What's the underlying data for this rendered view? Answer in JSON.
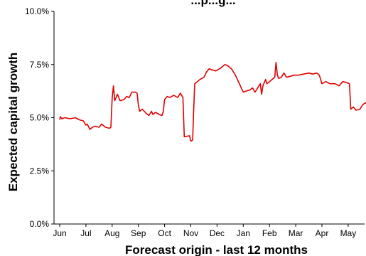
{
  "chart_data": {
    "type": "line",
    "title": "...p...g...",
    "xlabel": "Forecast origin - last 12 months",
    "ylabel": "Expected capital growth",
    "ylim": [
      0,
      10
    ],
    "y_ticks": [
      "0.0%",
      "2.5%",
      "5.0%",
      "7.5%",
      "10.0%"
    ],
    "x_ticks": [
      "Jun",
      "Jul",
      "Aug",
      "Sep",
      "Oct",
      "Nov",
      "Dec",
      "Jan",
      "Feb",
      "Mar",
      "Apr",
      "May"
    ],
    "x_range": [
      0,
      11.75
    ],
    "grid": false,
    "legend": "none",
    "series": [
      {
        "color": "#e00000",
        "points": [
          [
            0.0,
            4.9
          ],
          [
            0.03,
            5.05
          ],
          [
            0.08,
            4.95
          ],
          [
            0.2,
            5.0
          ],
          [
            0.4,
            4.95
          ],
          [
            0.6,
            5.0
          ],
          [
            0.75,
            4.9
          ],
          [
            0.9,
            4.85
          ],
          [
            1.0,
            4.65
          ],
          [
            1.05,
            4.7
          ],
          [
            1.15,
            4.45
          ],
          [
            1.25,
            4.55
          ],
          [
            1.35,
            4.6
          ],
          [
            1.5,
            4.55
          ],
          [
            1.6,
            4.7
          ],
          [
            1.75,
            4.55
          ],
          [
            1.9,
            4.5
          ],
          [
            1.95,
            4.55
          ],
          [
            2.0,
            5.9
          ],
          [
            2.05,
            6.5
          ],
          [
            2.1,
            5.8
          ],
          [
            2.2,
            6.1
          ],
          [
            2.3,
            5.8
          ],
          [
            2.45,
            5.85
          ],
          [
            2.55,
            6.0
          ],
          [
            2.65,
            5.95
          ],
          [
            2.75,
            6.2
          ],
          [
            2.9,
            6.2
          ],
          [
            2.95,
            6.15
          ],
          [
            3.0,
            5.6
          ],
          [
            3.05,
            5.3
          ],
          [
            3.15,
            5.4
          ],
          [
            3.3,
            5.2
          ],
          [
            3.4,
            5.1
          ],
          [
            3.5,
            5.3
          ],
          [
            3.55,
            5.15
          ],
          [
            3.65,
            5.25
          ],
          [
            3.8,
            5.15
          ],
          [
            3.9,
            5.1
          ],
          [
            3.95,
            5.3
          ],
          [
            4.0,
            5.85
          ],
          [
            4.1,
            6.0
          ],
          [
            4.2,
            5.95
          ],
          [
            4.35,
            6.05
          ],
          [
            4.5,
            5.95
          ],
          [
            4.6,
            6.15
          ],
          [
            4.7,
            5.95
          ],
          [
            4.75,
            4.1
          ],
          [
            4.95,
            4.15
          ],
          [
            5.0,
            3.9
          ],
          [
            5.07,
            3.95
          ],
          [
            5.1,
            5.1
          ],
          [
            5.15,
            6.6
          ],
          [
            5.25,
            6.7
          ],
          [
            5.35,
            6.8
          ],
          [
            5.5,
            6.9
          ],
          [
            5.6,
            7.15
          ],
          [
            5.7,
            7.3
          ],
          [
            5.8,
            7.25
          ],
          [
            5.95,
            7.2
          ],
          [
            6.1,
            7.3
          ],
          [
            6.2,
            7.4
          ],
          [
            6.3,
            7.5
          ],
          [
            6.4,
            7.45
          ],
          [
            6.55,
            7.3
          ],
          [
            6.7,
            7.0
          ],
          [
            6.85,
            6.6
          ],
          [
            7.0,
            6.2
          ],
          [
            7.1,
            6.25
          ],
          [
            7.25,
            6.3
          ],
          [
            7.35,
            6.4
          ],
          [
            7.45,
            6.2
          ],
          [
            7.5,
            6.3
          ],
          [
            7.6,
            6.5
          ],
          [
            7.65,
            6.6
          ],
          [
            7.7,
            6.1
          ],
          [
            7.75,
            6.5
          ],
          [
            7.85,
            6.8
          ],
          [
            7.9,
            6.6
          ],
          [
            8.0,
            6.7
          ],
          [
            8.1,
            6.8
          ],
          [
            8.2,
            6.9
          ],
          [
            8.25,
            7.6
          ],
          [
            8.3,
            7.0
          ],
          [
            8.35,
            6.85
          ],
          [
            8.45,
            6.9
          ],
          [
            8.55,
            7.1
          ],
          [
            8.65,
            6.9
          ],
          [
            8.8,
            6.95
          ],
          [
            8.95,
            7.0
          ],
          [
            9.1,
            7.0
          ],
          [
            9.3,
            7.05
          ],
          [
            9.5,
            7.1
          ],
          [
            9.65,
            7.05
          ],
          [
            9.8,
            7.1
          ],
          [
            9.9,
            7.0
          ],
          [
            10.0,
            6.6
          ],
          [
            10.15,
            6.7
          ],
          [
            10.3,
            6.6
          ],
          [
            10.5,
            6.6
          ],
          [
            10.65,
            6.5
          ],
          [
            10.8,
            6.7
          ],
          [
            10.95,
            6.65
          ],
          [
            11.05,
            6.6
          ],
          [
            11.1,
            5.4
          ],
          [
            11.2,
            5.5
          ],
          [
            11.3,
            5.35
          ],
          [
            11.45,
            5.4
          ],
          [
            11.55,
            5.6
          ],
          [
            11.65,
            5.7
          ],
          [
            11.75,
            5.65
          ]
        ]
      }
    ]
  }
}
